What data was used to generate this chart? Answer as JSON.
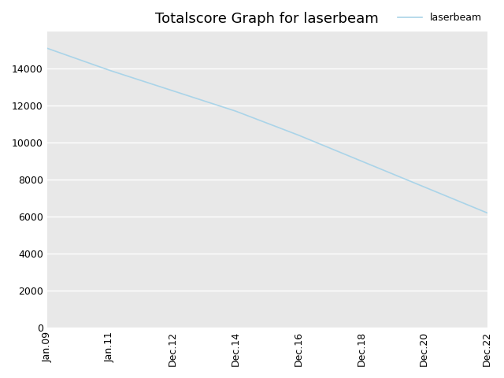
{
  "title": "Totalscore Graph for laserbeam",
  "legend_label": "laserbeam",
  "line_color": "#aad4e8",
  "background_color": "#ffffff",
  "axes_facecolor": "#e8e8e8",
  "grid_color": "#ffffff",
  "x_positions": [
    0,
    1,
    2,
    3,
    4,
    5,
    6,
    7
  ],
  "x_tick_labels": [
    "Jan.09",
    "Jan.11",
    "Dec.12",
    "Dec.14",
    "Dec.16",
    "Dec.18",
    "Dec.20",
    "Dec.22"
  ],
  "y_values": [
    15100,
    13900,
    12800,
    11700,
    10400,
    9000,
    7600,
    6200
  ],
  "ylim": [
    0,
    16000
  ],
  "yticks": [
    0,
    2000,
    4000,
    6000,
    8000,
    10000,
    12000,
    14000
  ],
  "title_fontsize": 13,
  "tick_fontsize": 9,
  "legend_fontsize": 9,
  "line_width": 1.2
}
